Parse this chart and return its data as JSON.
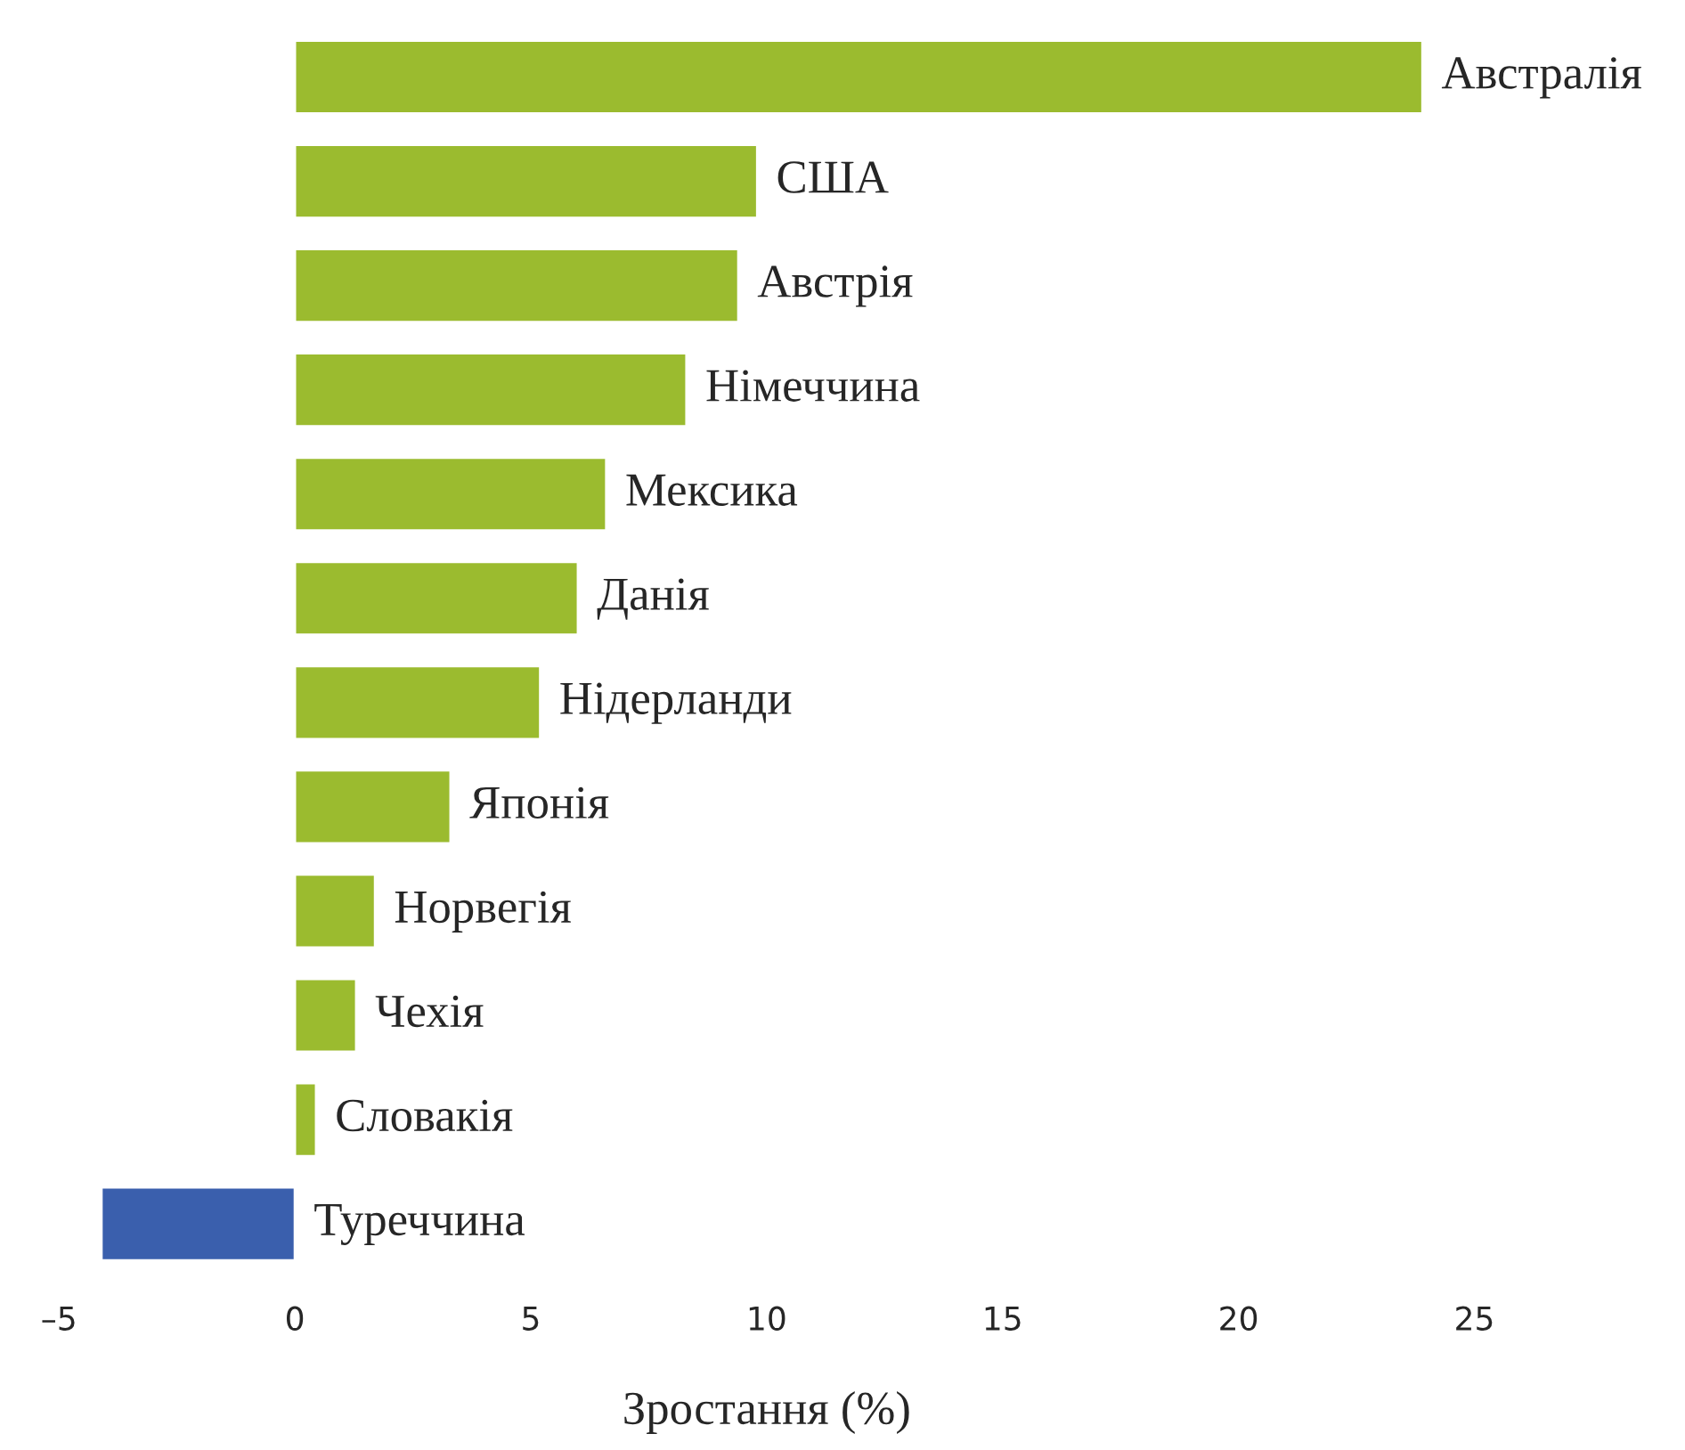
{
  "chart_data": {
    "type": "bar",
    "orientation": "horizontal",
    "xlabel": "Зростання (%)",
    "categories": [
      "Австралія",
      "США",
      "Австрія",
      "Німеччина",
      "Мексика",
      "Данія",
      "Нідерланди",
      "Японія",
      "Норвегія",
      "Чехія",
      "Словакія",
      "Туреччина"
    ],
    "values": [
      23.9,
      9.8,
      9.4,
      8.3,
      6.6,
      6.0,
      5.2,
      3.3,
      1.7,
      1.3,
      0.45,
      -4.1
    ],
    "colors": [
      "#9bbb2f",
      "#9bbb2f",
      "#9bbb2f",
      "#9bbb2f",
      "#9bbb2f",
      "#9bbb2f",
      "#9bbb2f",
      "#9bbb2f",
      "#9bbb2f",
      "#9bbb2f",
      "#9bbb2f",
      "#3a5fad"
    ],
    "xlim": [
      -5,
      25
    ],
    "xticks": [
      {
        "value": -5,
        "label": "–5"
      },
      0,
      5,
      10,
      15,
      20,
      25
    ],
    "tick_labels": "x",
    "grid": false,
    "legend": false
  }
}
